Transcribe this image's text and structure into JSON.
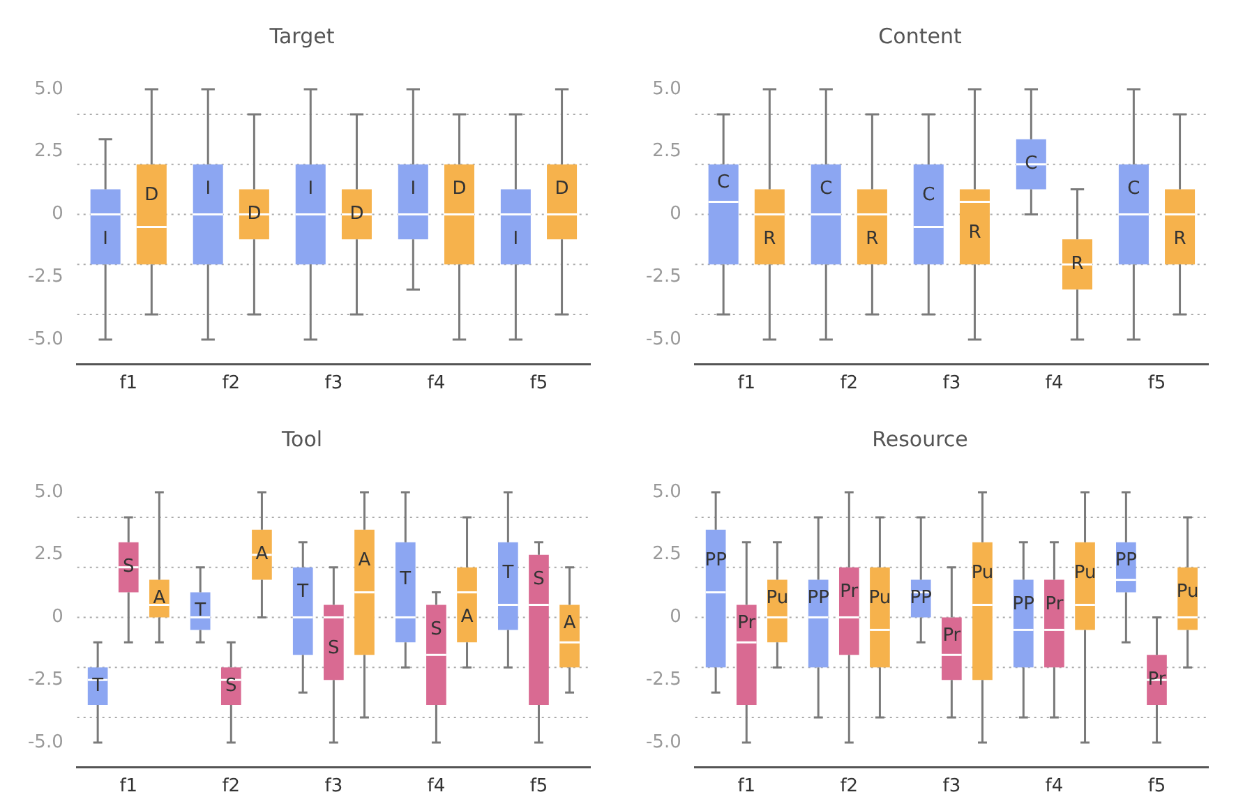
{
  "chart_data": [
    {
      "type": "box",
      "title": "Target",
      "categories": [
        "f1",
        "f2",
        "f3",
        "f4",
        "f5"
      ],
      "ylim": [
        -6,
        5
      ],
      "yticks": [
        {
          "value": -5,
          "label": "-5.0"
        },
        {
          "value": -2.5,
          "label": "-2.5"
        },
        {
          "value": 0,
          "label": "0"
        },
        {
          "value": 2.5,
          "label": "2.5"
        },
        {
          "value": 5,
          "label": "5.0"
        }
      ],
      "grid": false,
      "legend": false,
      "ref_lines": [
        {
          "axis": "y",
          "value": -4,
          "color": "#aaaaaa",
          "line_style": "dotted"
        },
        {
          "axis": "y",
          "value": -2,
          "color": "#aaaaaa",
          "line_style": "dotted"
        },
        {
          "axis": "y",
          "value": 0,
          "color": "#aaaaaa",
          "line_style": "dotted"
        },
        {
          "axis": "y",
          "value": 2,
          "color": "#aaaaaa",
          "line_style": "dotted"
        },
        {
          "axis": "y",
          "value": 4,
          "color": "#aaaaaa",
          "line_style": "dotted"
        }
      ],
      "series": [
        {
          "name": "I",
          "color": "#8ca6f2",
          "boxes": [
            {
              "low": -5,
              "q1": -2,
              "median": 0,
              "q3": 1,
              "high": 3
            },
            {
              "low": -5,
              "q1": -2,
              "median": 0,
              "q3": 2,
              "high": 5
            },
            {
              "low": -5,
              "q1": -2,
              "median": 0,
              "q3": 2,
              "high": 5
            },
            {
              "low": -3,
              "q1": -1,
              "median": 0,
              "q3": 2,
              "high": 5
            },
            {
              "low": -5,
              "q1": -2,
              "median": 0,
              "q3": 1,
              "high": 4
            }
          ]
        },
        {
          "name": "D",
          "color": "#f6b24c",
          "boxes": [
            {
              "low": -4,
              "q1": -2,
              "median": -0.5,
              "q3": 2,
              "high": 5
            },
            {
              "low": -4,
              "q1": -1,
              "median": 0,
              "q3": 1,
              "high": 4
            },
            {
              "low": -4,
              "q1": -1,
              "median": 0,
              "q3": 1,
              "high": 4
            },
            {
              "low": -5,
              "q1": -2,
              "median": 0,
              "q3": 2,
              "high": 4
            },
            {
              "low": -4,
              "q1": -1,
              "median": 0,
              "q3": 2,
              "high": 5
            }
          ]
        }
      ]
    },
    {
      "type": "box",
      "title": "Content",
      "categories": [
        "f1",
        "f2",
        "f3",
        "f4",
        "f5"
      ],
      "ylim": [
        -6,
        5
      ],
      "yticks": [
        {
          "value": -5,
          "label": "-5.0"
        },
        {
          "value": -2.5,
          "label": "-2.5"
        },
        {
          "value": 0,
          "label": "0"
        },
        {
          "value": 2.5,
          "label": "2.5"
        },
        {
          "value": 5,
          "label": "5.0"
        }
      ],
      "grid": false,
      "legend": false,
      "ref_lines": [
        {
          "axis": "y",
          "value": -4,
          "color": "#aaaaaa",
          "line_style": "dotted"
        },
        {
          "axis": "y",
          "value": -2,
          "color": "#aaaaaa",
          "line_style": "dotted"
        },
        {
          "axis": "y",
          "value": 0,
          "color": "#aaaaaa",
          "line_style": "dotted"
        },
        {
          "axis": "y",
          "value": 2,
          "color": "#aaaaaa",
          "line_style": "dotted"
        },
        {
          "axis": "y",
          "value": 4,
          "color": "#aaaaaa",
          "line_style": "dotted"
        }
      ],
      "series": [
        {
          "name": "C",
          "color": "#8ca6f2",
          "boxes": [
            {
              "low": -4,
              "q1": -2,
              "median": 0.5,
              "q3": 2,
              "high": 4
            },
            {
              "low": -5,
              "q1": -2,
              "median": 0,
              "q3": 2,
              "high": 5
            },
            {
              "low": -4,
              "q1": -2,
              "median": -0.5,
              "q3": 2,
              "high": 4
            },
            {
              "low": 0,
              "q1": 1,
              "median": 2,
              "q3": 3,
              "high": 5
            },
            {
              "low": -5,
              "q1": -2,
              "median": 0,
              "q3": 2,
              "high": 5
            }
          ]
        },
        {
          "name": "R",
          "color": "#f6b24c",
          "boxes": [
            {
              "low": -5,
              "q1": -2,
              "median": 0,
              "q3": 1,
              "high": 5
            },
            {
              "low": -4,
              "q1": -2,
              "median": 0,
              "q3": 1,
              "high": 4
            },
            {
              "low": -5,
              "q1": -2,
              "median": 0.5,
              "q3": 1,
              "high": 5
            },
            {
              "low": -5,
              "q1": -3,
              "median": -2,
              "q3": -1,
              "high": 1
            },
            {
              "low": -4,
              "q1": -2,
              "median": 0,
              "q3": 1,
              "high": 4
            }
          ]
        }
      ]
    },
    {
      "type": "box",
      "title": "Tool",
      "categories": [
        "f1",
        "f2",
        "f3",
        "f4",
        "f5"
      ],
      "ylim": [
        -6,
        5
      ],
      "yticks": [
        {
          "value": -5,
          "label": "-5.0"
        },
        {
          "value": -2.5,
          "label": "-2.5"
        },
        {
          "value": 0,
          "label": "0"
        },
        {
          "value": 2.5,
          "label": "2.5"
        },
        {
          "value": 5,
          "label": "5.0"
        }
      ],
      "grid": false,
      "legend": false,
      "ref_lines": [
        {
          "axis": "y",
          "value": -4,
          "color": "#aaaaaa",
          "line_style": "dotted"
        },
        {
          "axis": "y",
          "value": -2,
          "color": "#aaaaaa",
          "line_style": "dotted"
        },
        {
          "axis": "y",
          "value": 0,
          "color": "#aaaaaa",
          "line_style": "dotted"
        },
        {
          "axis": "y",
          "value": 2,
          "color": "#aaaaaa",
          "line_style": "dotted"
        },
        {
          "axis": "y",
          "value": 4,
          "color": "#aaaaaa",
          "line_style": "dotted"
        }
      ],
      "series": [
        {
          "name": "T",
          "color": "#8ca6f2",
          "boxes": [
            {
              "low": -5,
              "q1": -3.5,
              "median": -2.5,
              "q3": -2,
              "high": -1
            },
            {
              "low": -1,
              "q1": -0.5,
              "median": 0,
              "q3": 1,
              "high": 2
            },
            {
              "low": -3,
              "q1": -1.5,
              "median": 0,
              "q3": 2,
              "high": 3
            },
            {
              "low": -2,
              "q1": -1,
              "median": 0,
              "q3": 3,
              "high": 5
            },
            {
              "low": -2,
              "q1": -0.5,
              "median": 0.5,
              "q3": 3,
              "high": 5
            }
          ]
        },
        {
          "name": "S",
          "color": "#d96a92",
          "boxes": [
            {
              "low": -1,
              "q1": 1,
              "median": 2,
              "q3": 3,
              "high": 4
            },
            {
              "low": -5,
              "q1": -3.5,
              "median": -2.5,
              "q3": -2,
              "high": -1
            },
            {
              "low": -5,
              "q1": -2.5,
              "median": 0,
              "q3": 0.5,
              "high": 2
            },
            {
              "low": -5,
              "q1": -3.5,
              "median": -1.5,
              "q3": 0.5,
              "high": 1
            },
            {
              "low": -5,
              "q1": -3.5,
              "median": 0.5,
              "q3": 2.5,
              "high": 3
            }
          ]
        },
        {
          "name": "A",
          "color": "#f6b24c",
          "boxes": [
            {
              "low": -1,
              "q1": 0,
              "median": 0.5,
              "q3": 1.5,
              "high": 5
            },
            {
              "low": 0,
              "q1": 1.5,
              "median": 2.5,
              "q3": 3.5,
              "high": 5
            },
            {
              "low": -4,
              "q1": -1.5,
              "median": 1,
              "q3": 3.5,
              "high": 5
            },
            {
              "low": -2,
              "q1": -1,
              "median": 1,
              "q3": 2,
              "high": 4
            },
            {
              "low": -3,
              "q1": -2,
              "median": -1,
              "q3": 0.5,
              "high": 2
            }
          ]
        }
      ]
    },
    {
      "type": "box",
      "title": "Resource",
      "categories": [
        "f1",
        "f2",
        "f3",
        "f4",
        "f5"
      ],
      "ylim": [
        -6,
        5
      ],
      "yticks": [
        {
          "value": -5,
          "label": "-5.0"
        },
        {
          "value": -2.5,
          "label": "-2.5"
        },
        {
          "value": 0,
          "label": "0"
        },
        {
          "value": 2.5,
          "label": "2.5"
        },
        {
          "value": 5,
          "label": "5.0"
        }
      ],
      "grid": false,
      "legend": false,
      "ref_lines": [
        {
          "axis": "y",
          "value": -4,
          "color": "#aaaaaa",
          "line_style": "dotted"
        },
        {
          "axis": "y",
          "value": -2,
          "color": "#aaaaaa",
          "line_style": "dotted"
        },
        {
          "axis": "y",
          "value": 0,
          "color": "#aaaaaa",
          "line_style": "dotted"
        },
        {
          "axis": "y",
          "value": 2,
          "color": "#aaaaaa",
          "line_style": "dotted"
        },
        {
          "axis": "y",
          "value": 4,
          "color": "#aaaaaa",
          "line_style": "dotted"
        }
      ],
      "series": [
        {
          "name": "PP",
          "color": "#8ca6f2",
          "boxes": [
            {
              "low": -3,
              "q1": -2,
              "median": 1,
              "q3": 3.5,
              "high": 5
            },
            {
              "low": -4,
              "q1": -2,
              "median": 0,
              "q3": 1.5,
              "high": 4
            },
            {
              "low": -1,
              "q1": 0,
              "median": 1,
              "q3": 1.5,
              "high": 4
            },
            {
              "low": -4,
              "q1": -2,
              "median": -0.5,
              "q3": 1.5,
              "high": 3
            },
            {
              "low": -1,
              "q1": 1,
              "median": 1.5,
              "q3": 3,
              "high": 5
            }
          ]
        },
        {
          "name": "Pr",
          "color": "#d96a92",
          "boxes": [
            {
              "low": -5,
              "q1": -3.5,
              "median": -1,
              "q3": 0.5,
              "high": 3
            },
            {
              "low": -5,
              "q1": -1.5,
              "median": 0,
              "q3": 2,
              "high": 5
            },
            {
              "low": -4,
              "q1": -2.5,
              "median": -1.5,
              "q3": 0,
              "high": 2
            },
            {
              "low": -4,
              "q1": -2,
              "median": -0.5,
              "q3": 1.5,
              "high": 3
            },
            {
              "low": -5,
              "q1": -3.5,
              "median": -2.5,
              "q3": -1.5,
              "high": 0
            }
          ]
        },
        {
          "name": "Pu",
          "color": "#f6b24c",
          "boxes": [
            {
              "low": -2,
              "q1": -1,
              "median": 0,
              "q3": 1.5,
              "high": 3
            },
            {
              "low": -4,
              "q1": -2,
              "median": -0.5,
              "q3": 2,
              "high": 4
            },
            {
              "low": -5,
              "q1": -2.5,
              "median": 0.5,
              "q3": 3,
              "high": 5
            },
            {
              "low": -5,
              "q1": -0.5,
              "median": 0.5,
              "q3": 3,
              "high": 5
            },
            {
              "low": -2,
              "q1": -0.5,
              "median": 0,
              "q3": 2,
              "high": 4
            }
          ]
        }
      ]
    }
  ]
}
